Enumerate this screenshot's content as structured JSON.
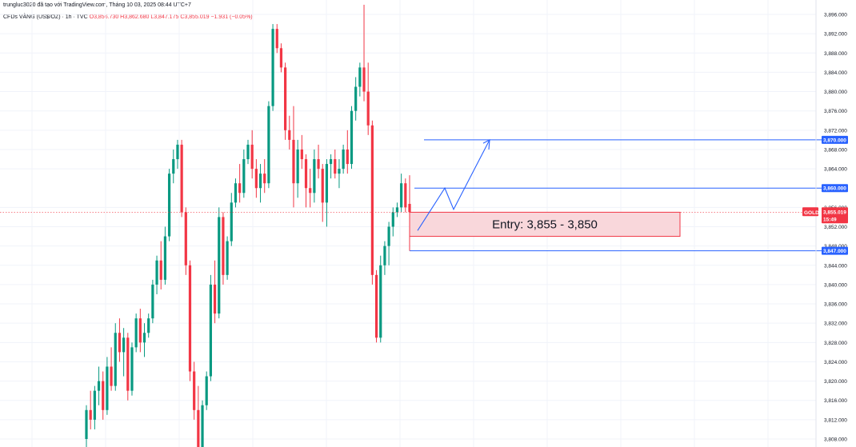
{
  "header": {
    "attribution": "trungluc3020 đã tạo với TradingView.com, Tháng 10 03, 2025 08:44 UTC+7",
    "symbol_line": "CFDs VÀNG (US$/OZ) · 1h · TVC",
    "open": "O3,856.730",
    "high": "H3,862.680",
    "low": "L3,847.175",
    "close": "C3,855.019",
    "change": "−1.931 (−0.05%)"
  },
  "colors": {
    "up": "#089981",
    "down": "#f23645",
    "level_line": "#2962ff",
    "entry_fill": "#f9d7db",
    "entry_border": "#f23645",
    "grid": "#f0f3fa",
    "axis_text": "#131722"
  },
  "price_axis": {
    "ticks": [
      "3,896.000",
      "3,892.000",
      "3,888.000",
      "3,884.000",
      "3,880.000",
      "3,876.000",
      "3,872.000",
      "3,868.000",
      "3,864.000",
      "3,856.000",
      "3,852.000",
      "3,848.000",
      "3,844.000",
      "3,840.000",
      "3,836.000",
      "3,832.000",
      "3,828.000",
      "3,824.000",
      "3,820.000",
      "3,816.000",
      "3,812.000",
      "3,808.000"
    ],
    "tick_values": [
      3896,
      3892,
      3888,
      3884,
      3880,
      3876,
      3872,
      3868,
      3864,
      3856,
      3852,
      3848,
      3844,
      3840,
      3836,
      3832,
      3828,
      3824,
      3820,
      3816,
      3812,
      3808
    ],
    "current_symbol": "GOLD",
    "current_price": "3,855.019",
    "countdown": "15:49"
  },
  "levels": [
    {
      "name": "target",
      "value": 3870,
      "label": "3,870.000"
    },
    {
      "name": "resistance",
      "value": 3860,
      "label": "3,860.000"
    },
    {
      "name": "stop",
      "value": 3847,
      "label": "3,847.000"
    }
  ],
  "entry_zone": {
    "text": "Entry: 3,855 - 3,850",
    "top": 3855,
    "bottom": 3850
  },
  "chart_data": {
    "type": "candlestick",
    "title": "CFDs VÀNG (US$/OZ) · 1h · TVC",
    "ylim": [
      3807,
      3898
    ],
    "ohlc": [
      [
        3808,
        3815,
        3806,
        3814
      ],
      [
        3814,
        3818,
        3810,
        3812
      ],
      [
        3812,
        3819,
        3810,
        3818
      ],
      [
        3818,
        3823,
        3815,
        3820
      ],
      [
        3820,
        3822,
        3812,
        3814
      ],
      [
        3814,
        3825,
        3813,
        3823
      ],
      [
        3823,
        3827,
        3818,
        3819
      ],
      [
        3819,
        3832,
        3818,
        3830
      ],
      [
        3830,
        3833,
        3824,
        3826
      ],
      [
        3826,
        3831,
        3821,
        3829
      ],
      [
        3829,
        3830,
        3816,
        3818
      ],
      [
        3818,
        3828,
        3817,
        3827
      ],
      [
        3827,
        3834,
        3826,
        3833
      ],
      [
        3833,
        3835,
        3826,
        3828
      ],
      [
        3828,
        3832,
        3825,
        3830
      ],
      [
        3830,
        3834,
        3829,
        3833
      ],
      [
        3833,
        3841,
        3832,
        3840
      ],
      [
        3840,
        3846,
        3838,
        3845
      ],
      [
        3845,
        3849,
        3839,
        3841
      ],
      [
        3841,
        3852,
        3840,
        3850
      ],
      [
        3850,
        3864,
        3849,
        3863
      ],
      [
        3863,
        3868,
        3861,
        3866
      ],
      [
        3866,
        3870,
        3864,
        3869
      ],
      [
        3869,
        3870,
        3854,
        3855
      ],
      [
        3855,
        3856,
        3842,
        3844
      ],
      [
        3844,
        3845,
        3820,
        3822
      ],
      [
        3822,
        3824,
        3812,
        3814
      ],
      [
        3814,
        3819,
        3803,
        3804
      ],
      [
        3804,
        3816,
        3803,
        3815
      ],
      [
        3815,
        3822,
        3814,
        3821
      ],
      [
        3821,
        3842,
        3820,
        3840
      ],
      [
        3840,
        3845,
        3832,
        3834
      ],
      [
        3834,
        3856,
        3833,
        3854
      ],
      [
        3854,
        3855,
        3840,
        3842
      ],
      [
        3842,
        3850,
        3841,
        3849
      ],
      [
        3849,
        3859,
        3848,
        3857
      ],
      [
        3857,
        3862,
        3856,
        3861
      ],
      [
        3861,
        3865,
        3857,
        3859
      ],
      [
        3859,
        3868,
        3858,
        3866
      ],
      [
        3866,
        3870,
        3865,
        3869
      ],
      [
        3869,
        3872,
        3862,
        3864
      ],
      [
        3864,
        3866,
        3858,
        3860
      ],
      [
        3860,
        3865,
        3857,
        3863
      ],
      [
        3863,
        3866,
        3859,
        3861
      ],
      [
        3861,
        3878,
        3860,
        3877
      ],
      [
        3877,
        3894,
        3876,
        3893
      ],
      [
        3893,
        3894,
        3888,
        3889
      ],
      [
        3889,
        3890,
        3884,
        3885
      ],
      [
        3885,
        3886,
        3870,
        3872
      ],
      [
        3872,
        3875,
        3868,
        3870
      ],
      [
        3870,
        3877,
        3856,
        3861
      ],
      [
        3861,
        3870,
        3858,
        3868
      ],
      [
        3868,
        3871,
        3864,
        3866
      ],
      [
        3866,
        3867,
        3856,
        3860
      ],
      [
        3860,
        3864,
        3856,
        3859
      ],
      [
        3859,
        3868,
        3857,
        3866
      ],
      [
        3866,
        3869,
        3862,
        3864
      ],
      [
        3864,
        3865,
        3853,
        3857
      ],
      [
        3857,
        3866,
        3852,
        3865
      ],
      [
        3865,
        3867,
        3862,
        3866
      ],
      [
        3866,
        3868,
        3862,
        3863
      ],
      [
        3863,
        3866,
        3860,
        3864
      ],
      [
        3864,
        3869,
        3863,
        3868
      ],
      [
        3868,
        3872,
        3863,
        3865
      ],
      [
        3865,
        3877,
        3864,
        3876
      ],
      [
        3876,
        3883,
        3874,
        3881
      ],
      [
        3881,
        3886,
        3879,
        3885
      ],
      [
        3885,
        3898,
        3878,
        3880
      ],
      [
        3880,
        3886,
        3871,
        3873
      ],
      [
        3873,
        3874,
        3840,
        3842
      ],
      [
        3842,
        3843,
        3828,
        3829
      ],
      [
        3829,
        3846,
        3828,
        3844
      ],
      [
        3844,
        3849,
        3842,
        3848
      ],
      [
        3848,
        3853,
        3844,
        3852
      ],
      [
        3852,
        3856,
        3850,
        3855
      ],
      [
        3855,
        3857,
        3854,
        3856
      ],
      [
        3856,
        3863,
        3855,
        3861
      ],
      [
        3861,
        3862,
        3855,
        3856
      ],
      [
        3856.73,
        3862.68,
        3847.175,
        3855.019
      ]
    ]
  }
}
